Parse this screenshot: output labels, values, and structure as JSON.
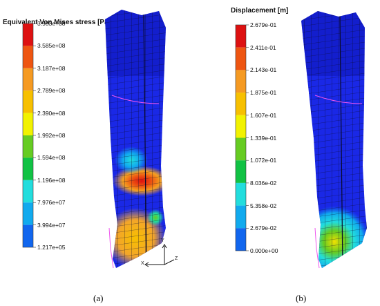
{
  "panel_a": {
    "legend_title": "Equivalent Von Mises stress [Pa]",
    "ticks": [
      "3.983e+08",
      "3.585e+08",
      "3.187e+08",
      "2.789e+08",
      "2.390e+08",
      "1.992e+08",
      "1.594e+08",
      "1.196e+08",
      "7.976e+07",
      "3.994e+07",
      "1.217e+05"
    ],
    "caption": "(a)",
    "axes": {
      "x": "X",
      "y": "Y",
      "z": "Z"
    }
  },
  "panel_b": {
    "legend_title": "Displacement [m]",
    "ticks": [
      "2.679e-01",
      "2.411e-01",
      "2.143e-01",
      "1.875e-01",
      "1.607e-01",
      "1.339e-01",
      "1.072e-01",
      "8.036e-02",
      "5.358e-02",
      "2.679e-02",
      "0.000e+00"
    ],
    "caption": "(b)"
  },
  "colors": {
    "scale": [
      "#dd1111",
      "#ee5511",
      "#f59a22",
      "#f7c000",
      "#f2f200",
      "#66cc22",
      "#11c244",
      "#22dddd",
      "#11aaee",
      "#1166ee",
      "#1a22ee"
    ],
    "mesh_base": "#1a28e6",
    "mesh_line": "#0a0a2a"
  }
}
